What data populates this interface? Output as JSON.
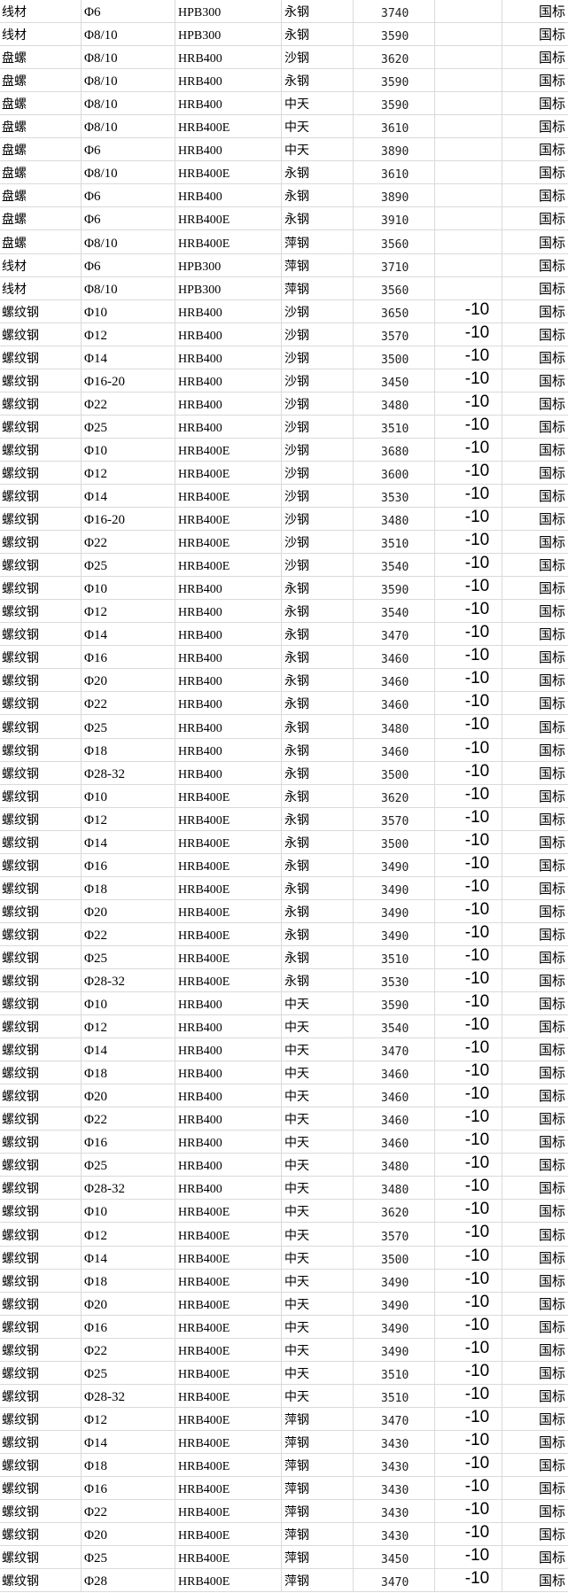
{
  "colors": {
    "grid": "#dadada",
    "text": "#000000"
  },
  "rows": [
    [
      "线材",
      "Φ6",
      "HPB300",
      "永钢",
      "3740",
      "",
      "国标"
    ],
    [
      "线材",
      "Φ8/10",
      "HPB300",
      "永钢",
      "3590",
      "",
      "国标"
    ],
    [
      "盘螺",
      "Φ8/10",
      "HRB400",
      "沙钢",
      "3620",
      "",
      "国标"
    ],
    [
      "盘螺",
      "Φ8/10",
      "HRB400",
      "永钢",
      "3590",
      "",
      "国标"
    ],
    [
      "盘螺",
      "Φ8/10",
      "HRB400",
      "中天",
      "3590",
      "",
      "国标"
    ],
    [
      "盘螺",
      "Φ8/10",
      "HRB400E",
      "中天",
      "3610",
      "",
      "国标"
    ],
    [
      "盘螺",
      "Φ6",
      "HRB400",
      "中天",
      "3890",
      "",
      "国标"
    ],
    [
      "盘螺",
      "Φ8/10",
      "HRB400E",
      "永钢",
      "3610",
      "",
      "国标"
    ],
    [
      "盘螺",
      "Φ6",
      "HRB400",
      "永钢",
      "3890",
      "",
      "国标"
    ],
    [
      "盘螺",
      "Φ6",
      "HRB400E",
      "永钢",
      "3910",
      "",
      "国标"
    ],
    [
      "盘螺",
      "Φ8/10",
      "HRB400E",
      "萍钢",
      "3560",
      "",
      "国标"
    ],
    [
      "线材",
      "Φ6",
      "HPB300",
      "萍钢",
      "3710",
      "",
      "国标"
    ],
    [
      "线材",
      "Φ8/10",
      "HPB300",
      "萍钢",
      "3560",
      "",
      "国标"
    ],
    [
      "螺纹钢",
      "Φ10",
      "HRB400",
      "沙钢",
      "3650",
      "-10",
      "国标"
    ],
    [
      "螺纹钢",
      "Φ12",
      "HRB400",
      "沙钢",
      "3570",
      "-10",
      "国标"
    ],
    [
      "螺纹钢",
      "Φ14",
      "HRB400",
      "沙钢",
      "3500",
      "-10",
      "国标"
    ],
    [
      "螺纹钢",
      "Φ16-20",
      "HRB400",
      "沙钢",
      "3450",
      "-10",
      "国标"
    ],
    [
      "螺纹钢",
      "Φ22",
      "HRB400",
      "沙钢",
      "3480",
      "-10",
      "国标"
    ],
    [
      "螺纹钢",
      "Φ25",
      "HRB400",
      "沙钢",
      "3510",
      "-10",
      "国标"
    ],
    [
      "螺纹钢",
      "Φ10",
      "HRB400E",
      "沙钢",
      "3680",
      "-10",
      "国标"
    ],
    [
      "螺纹钢",
      "Φ12",
      "HRB400E",
      "沙钢",
      "3600",
      "-10",
      "国标"
    ],
    [
      "螺纹钢",
      "Φ14",
      "HRB400E",
      "沙钢",
      "3530",
      "-10",
      "国标"
    ],
    [
      "螺纹钢",
      "Φ16-20",
      "HRB400E",
      "沙钢",
      "3480",
      "-10",
      "国标"
    ],
    [
      "螺纹钢",
      "Φ22",
      "HRB400E",
      "沙钢",
      "3510",
      "-10",
      "国标"
    ],
    [
      "螺纹钢",
      "Φ25",
      "HRB400E",
      "沙钢",
      "3540",
      "-10",
      "国标"
    ],
    [
      "螺纹钢",
      "Φ10",
      "HRB400",
      "永钢",
      "3590",
      "-10",
      "国标"
    ],
    [
      "螺纹钢",
      "Φ12",
      "HRB400",
      "永钢",
      "3540",
      "-10",
      "国标"
    ],
    [
      "螺纹钢",
      "Φ14",
      "HRB400",
      "永钢",
      "3470",
      "-10",
      "国标"
    ],
    [
      "螺纹钢",
      "Φ16",
      "HRB400",
      "永钢",
      "3460",
      "-10",
      "国标"
    ],
    [
      "螺纹钢",
      "Φ20",
      "HRB400",
      "永钢",
      "3460",
      "-10",
      "国标"
    ],
    [
      "螺纹钢",
      "Φ22",
      "HRB400",
      "永钢",
      "3460",
      "-10",
      "国标"
    ],
    [
      "螺纹钢",
      "Φ25",
      "HRB400",
      "永钢",
      "3480",
      "-10",
      "国标"
    ],
    [
      "螺纹钢",
      "Φ18",
      "HRB400",
      "永钢",
      "3460",
      "-10",
      "国标"
    ],
    [
      "螺纹钢",
      "Φ28-32",
      "HRB400",
      "永钢",
      "3500",
      "-10",
      "国标"
    ],
    [
      "螺纹钢",
      "Φ10",
      "HRB400E",
      "永钢",
      "3620",
      "-10",
      "国标"
    ],
    [
      "螺纹钢",
      "Φ12",
      "HRB400E",
      "永钢",
      "3570",
      "-10",
      "国标"
    ],
    [
      "螺纹钢",
      "Φ14",
      "HRB400E",
      "永钢",
      "3500",
      "-10",
      "国标"
    ],
    [
      "螺纹钢",
      "Φ16",
      "HRB400E",
      "永钢",
      "3490",
      "-10",
      "国标"
    ],
    [
      "螺纹钢",
      "Φ18",
      "HRB400E",
      "永钢",
      "3490",
      "-10",
      "国标"
    ],
    [
      "螺纹钢",
      "Φ20",
      "HRB400E",
      "永钢",
      "3490",
      "-10",
      "国标"
    ],
    [
      "螺纹钢",
      "Φ22",
      "HRB400E",
      "永钢",
      "3490",
      "-10",
      "国标"
    ],
    [
      "螺纹钢",
      "Φ25",
      "HRB400E",
      "永钢",
      "3510",
      "-10",
      "国标"
    ],
    [
      "螺纹钢",
      "Φ28-32",
      "HRB400E",
      "永钢",
      "3530",
      "-10",
      "国标"
    ],
    [
      "螺纹钢",
      "Φ10",
      "HRB400",
      "中天",
      "3590",
      "-10",
      "国标"
    ],
    [
      "螺纹钢",
      "Φ12",
      "HRB400",
      "中天",
      "3540",
      "-10",
      "国标"
    ],
    [
      "螺纹钢",
      "Φ14",
      "HRB400",
      "中天",
      "3470",
      "-10",
      "国标"
    ],
    [
      "螺纹钢",
      "Φ18",
      "HRB400",
      "中天",
      "3460",
      "-10",
      "国标"
    ],
    [
      "螺纹钢",
      "Φ20",
      "HRB400",
      "中天",
      "3460",
      "-10",
      "国标"
    ],
    [
      "螺纹钢",
      "Φ22",
      "HRB400",
      "中天",
      "3460",
      "-10",
      "国标"
    ],
    [
      "螺纹钢",
      "Φ16",
      "HRB400",
      "中天",
      "3460",
      "-10",
      "国标"
    ],
    [
      "螺纹钢",
      "Φ25",
      "HRB400",
      "中天",
      "3480",
      "-10",
      "国标"
    ],
    [
      "螺纹钢",
      "Φ28-32",
      "HRB400",
      "中天",
      "3480",
      "-10",
      "国标"
    ],
    [
      "螺纹钢",
      "Φ10",
      "HRB400E",
      "中天",
      "3620",
      "-10",
      "国标"
    ],
    [
      "螺纹钢",
      "Φ12",
      "HRB400E",
      "中天",
      "3570",
      "-10",
      "国标"
    ],
    [
      "螺纹钢",
      "Φ14",
      "HRB400E",
      "中天",
      "3500",
      "-10",
      "国标"
    ],
    [
      "螺纹钢",
      "Φ18",
      "HRB400E",
      "中天",
      "3490",
      "-10",
      "国标"
    ],
    [
      "螺纹钢",
      "Φ20",
      "HRB400E",
      "中天",
      "3490",
      "-10",
      "国标"
    ],
    [
      "螺纹钢",
      "Φ16",
      "HRB400E",
      "中天",
      "3490",
      "-10",
      "国标"
    ],
    [
      "螺纹钢",
      "Φ22",
      "HRB400E",
      "中天",
      "3490",
      "-10",
      "国标"
    ],
    [
      "螺纹钢",
      "Φ25",
      "HRB400E",
      "中天",
      "3510",
      "-10",
      "国标"
    ],
    [
      "螺纹钢",
      "Φ28-32",
      "HRB400E",
      "中天",
      "3510",
      "-10",
      "国标"
    ],
    [
      "螺纹钢",
      "Φ12",
      "HRB400E",
      "萍钢",
      "3470",
      "-10",
      "国标"
    ],
    [
      "螺纹钢",
      "Φ14",
      "HRB400E",
      "萍钢",
      "3430",
      "-10",
      "国标"
    ],
    [
      "螺纹钢",
      "Φ18",
      "HRB400E",
      "萍钢",
      "3430",
      "-10",
      "国标"
    ],
    [
      "螺纹钢",
      "Φ16",
      "HRB400E",
      "萍钢",
      "3430",
      "-10",
      "国标"
    ],
    [
      "螺纹钢",
      "Φ22",
      "HRB400E",
      "萍钢",
      "3430",
      "-10",
      "国标"
    ],
    [
      "螺纹钢",
      "Φ20",
      "HRB400E",
      "萍钢",
      "3430",
      "-10",
      "国标"
    ],
    [
      "螺纹钢",
      "Φ25",
      "HRB400E",
      "萍钢",
      "3450",
      "-10",
      "国标"
    ],
    [
      "螺纹钢",
      "Φ28",
      "HRB400E",
      "萍钢",
      "3470",
      "-10",
      "国标"
    ]
  ]
}
